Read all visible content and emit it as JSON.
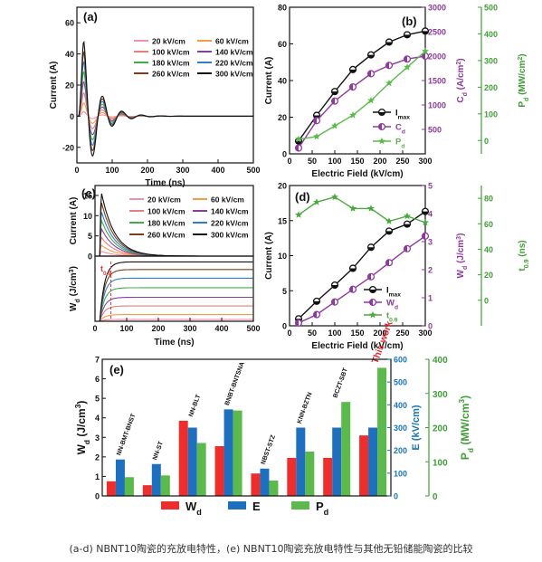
{
  "caption": "(a-d) NBNT10陶瓷的充放电特性，(e) NBNT10陶瓷充放电特性与其他无铅储能陶瓷的比较",
  "colors": {
    "wd": "#ee2d2d",
    "e": "#1f6fbf",
    "pd": "#5cba4c",
    "imax": "#111111",
    "cd": "#8d3a9c",
    "t09": "#4aa93e",
    "left_axis": "#111111",
    "right_axis_blue": "#1775b8",
    "right_axis_green": "#3f9e35"
  },
  "fields": [
    "20 kV/cm",
    "60 kV/cm",
    "100 kV/cm",
    "140 kV/cm",
    "180 kV/cm",
    "220 kV/cm",
    "260 kV/cm",
    "300 kV/cm"
  ],
  "field_colors": [
    "#f48fb0",
    "#f29c4a",
    "#ea7d7d",
    "#8a3fa0",
    "#3fb049",
    "#2f7fc6",
    "#7a3d1f",
    "#111111"
  ],
  "chart_data": [
    {
      "panel": "(a)",
      "type": "line",
      "xlabel": "Time (ns)",
      "ylabel": "Current (A)",
      "xlim": [
        0,
        500
      ],
      "ylim": [
        -30,
        70
      ],
      "xticks": [
        0,
        100,
        200,
        300,
        400,
        500
      ],
      "yticks": [
        -20,
        0,
        20,
        40,
        60
      ],
      "waveform": {
        "peak_time_ns": 15,
        "oscillation_period_ns": 55,
        "decay_ns": 40
      },
      "series": [
        {
          "name": "20 kV/cm",
          "peak": 4
        },
        {
          "name": "60 kV/cm",
          "peak": 12
        },
        {
          "name": "100 kV/cm",
          "peak": 21
        },
        {
          "name": "140 kV/cm",
          "peak": 31
        },
        {
          "name": "180 kV/cm",
          "peak": 40
        },
        {
          "name": "220 kV/cm",
          "peak": 49
        },
        {
          "name": "260 kV/cm",
          "peak": 58
        },
        {
          "name": "300 kV/cm",
          "peak": 67
        }
      ]
    },
    {
      "panel": "(b)",
      "type": "line",
      "xlabel": "Electric Field (kV/cm)",
      "ylabel": "Current (A)",
      "ylabel_right1": "Cd (A/cm²)",
      "ylabel_right2": "Pd (MW/cm²)",
      "xlim": [
        0,
        300
      ],
      "xticks": [
        0,
        50,
        100,
        150,
        200,
        250,
        300
      ],
      "ylim": [
        0,
        80
      ],
      "yticks": [
        0,
        20,
        40,
        60,
        80
      ],
      "ylim_right1": [
        0,
        3000
      ],
      "yticks_right1": [
        500,
        1000,
        1500,
        2000,
        2500,
        3000
      ],
      "ylim_right2": [
        -50,
        500
      ],
      "yticks_right2": [
        0,
        100,
        200,
        300,
        400,
        500
      ],
      "x": [
        20,
        60,
        100,
        140,
        180,
        220,
        260,
        300
      ],
      "series": [
        {
          "name": "Imax",
          "axis": "left",
          "values": [
            7,
            21,
            34,
            46,
            54,
            61,
            65,
            67
          ]
        },
        {
          "name": "Cd",
          "axis": "right1",
          "values": [
            120,
            680,
            1080,
            1370,
            1640,
            1810,
            1940,
            2000
          ]
        },
        {
          "name": "Pd",
          "axis": "right2",
          "values": [
            5,
            15,
            55,
            95,
            150,
            215,
            275,
            335
          ]
        }
      ],
      "legend": [
        "Imax",
        "Cd",
        "Pd"
      ]
    },
    {
      "panel": "(c)",
      "type": "line",
      "xlabel": "Time (ns)",
      "ylabel_top": "Current (A)",
      "ylabel_bottom": "Wd (J/cm³)",
      "xlim": [
        0,
        500
      ],
      "xticks": [
        0,
        100,
        200,
        300,
        400,
        500
      ],
      "ylim_top": [
        0,
        17
      ],
      "yticks_top": [
        0,
        5,
        10,
        15
      ],
      "annotation": "t0.9",
      "t09_ns": 50,
      "series": [
        {
          "name": "20 kV/cm",
          "current_peak": 1.2,
          "wd_final": 0.1
        },
        {
          "name": "60 kV/cm",
          "current_peak": 2.8,
          "wd_final": 0.35
        },
        {
          "name": "100 kV/cm",
          "current_peak": 4.8,
          "wd_final": 0.8
        },
        {
          "name": "140 kV/cm",
          "current_peak": 7.0,
          "wd_final": 1.25
        },
        {
          "name": "180 kV/cm",
          "current_peak": 9.2,
          "wd_final": 1.75
        },
        {
          "name": "220 kV/cm",
          "current_peak": 11.4,
          "wd_final": 2.25
        },
        {
          "name": "260 kV/cm",
          "current_peak": 13.8,
          "wd_final": 2.7
        },
        {
          "name": "300 kV/cm",
          "current_peak": 16.2,
          "wd_final": 3.1
        }
      ]
    },
    {
      "panel": "(d)",
      "type": "line",
      "xlabel": "Electric Field (kV/cm)",
      "ylabel": "Current (A)",
      "ylabel_right1": "Wd (J/cm³)",
      "ylabel_right2": "t0.9 (ns)",
      "xlim": [
        0,
        300
      ],
      "xticks": [
        0,
        50,
        100,
        150,
        200,
        250,
        300
      ],
      "ylim": [
        0,
        20
      ],
      "yticks": [
        0,
        5,
        10,
        15,
        20
      ],
      "ylim_right1": [
        0,
        5
      ],
      "yticks_right1": [
        0,
        1,
        2,
        3,
        4,
        5
      ],
      "ylim_right2": [
        -20,
        90
      ],
      "yticks_right2": [
        0,
        20,
        40,
        60,
        80
      ],
      "x": [
        20,
        60,
        100,
        140,
        180,
        220,
        260,
        300
      ],
      "series": [
        {
          "name": "Imax",
          "axis": "left",
          "values": [
            1,
            3.5,
            5.8,
            8.2,
            11.2,
            13.5,
            14.5,
            16.3
          ]
        },
        {
          "name": "Wd",
          "axis": "right1",
          "values": [
            0.1,
            0.4,
            0.85,
            1.3,
            1.75,
            2.25,
            2.75,
            3.2
          ]
        },
        {
          "name": "t0.9",
          "axis": "right2",
          "values": [
            67,
            77,
            81,
            72,
            72,
            62,
            66,
            61
          ]
        }
      ],
      "legend": [
        "Imax",
        "Wd",
        "t0.9"
      ]
    },
    {
      "panel": "(e)",
      "type": "bar",
      "ylabel": "Wd (J/cm³)",
      "ylabel_right1": "E (kV/cm)",
      "ylabel_right2": "Pd (MW/cm³)",
      "ylim": [
        0,
        7
      ],
      "yticks": [
        0,
        1,
        2,
        3,
        4,
        5,
        6,
        7
      ],
      "ylim_right1": [
        0,
        600
      ],
      "yticks_right1": [
        0,
        100,
        200,
        300,
        400,
        500,
        600
      ],
      "ylim_right2": [
        0,
        400
      ],
      "yticks_right2": [
        0,
        100,
        200,
        300,
        400
      ],
      "categories": [
        "NN-BMT-BNST",
        "NN-ST",
        "NN-BLT",
        "BNBT-BNTSNA",
        "NBST-STZ",
        "KNN-BZTN",
        "BCZT-SBT",
        "This work"
      ],
      "series": [
        {
          "name": "Wd",
          "values": [
            0.75,
            0.55,
            3.85,
            2.55,
            1.15,
            1.95,
            1.95,
            3.1
          ]
        },
        {
          "name": "E",
          "values": [
            160,
            140,
            300,
            380,
            120,
            300,
            300,
            300
          ]
        },
        {
          "name": "Pd",
          "values": [
            55,
            60,
            155,
            250,
            45,
            130,
            275,
            375
          ]
        }
      ],
      "legend": [
        "Wd",
        "E",
        "Pd"
      ]
    }
  ]
}
